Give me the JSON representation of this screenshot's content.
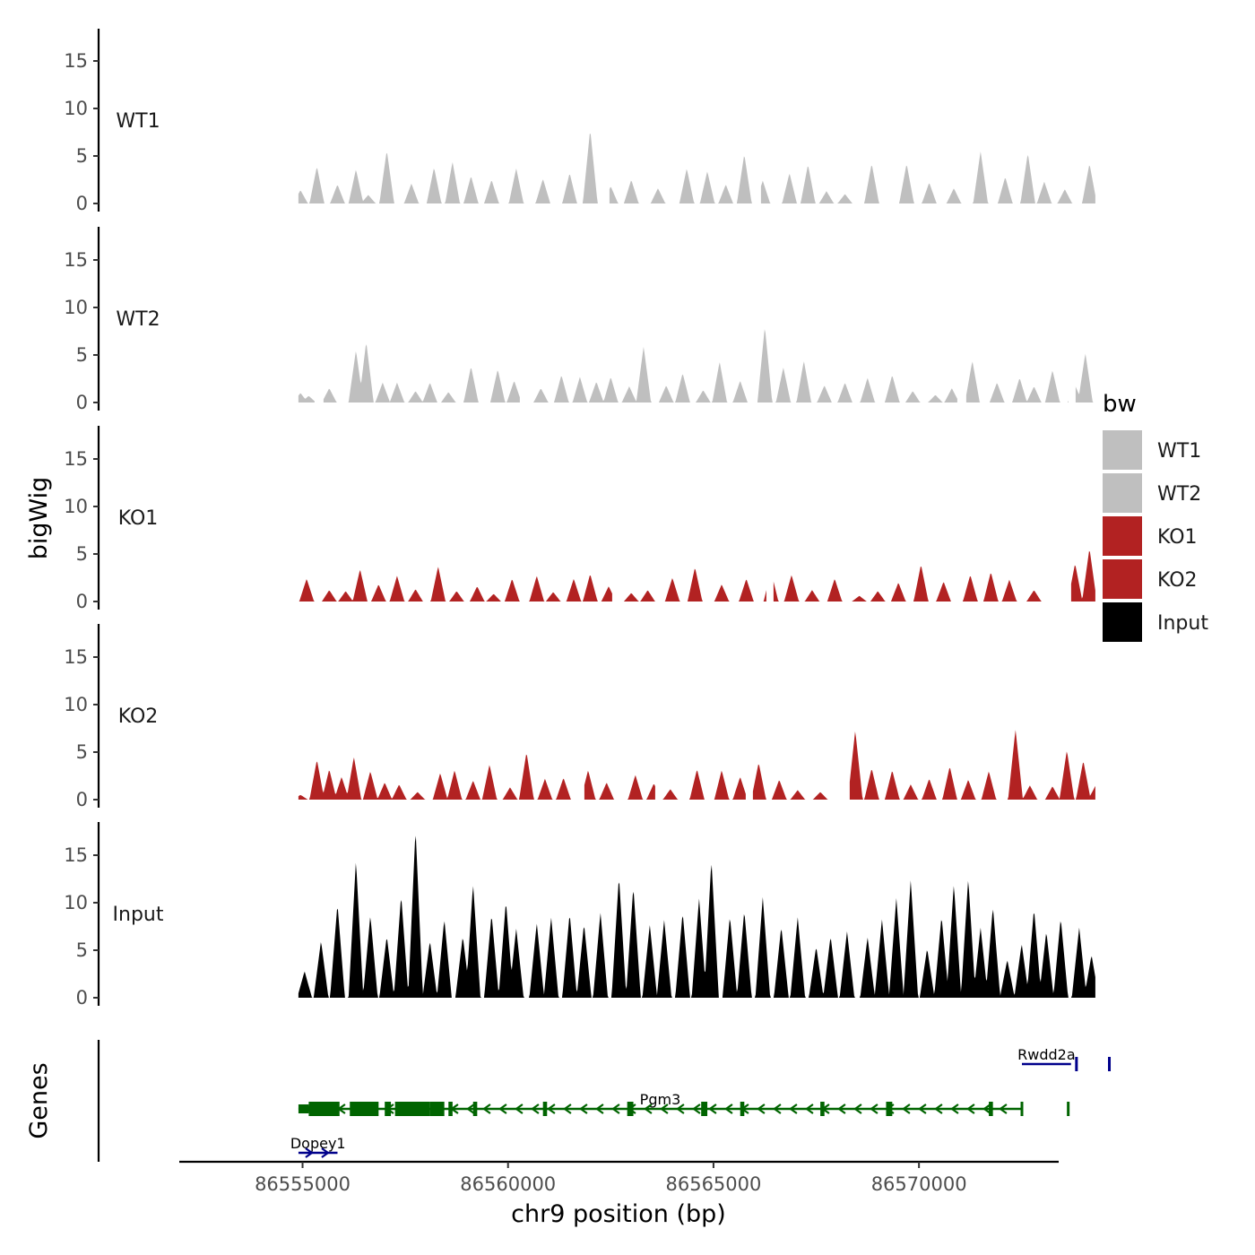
{
  "chart_data": {
    "type": "area",
    "chromosome": "chr9",
    "xlabel": "chr9 position (bp)",
    "ylabel": "bigWig",
    "genes_label": "Genes",
    "xlim": [
      86552000,
      86573400
    ],
    "xticks": [
      86555000,
      86560000,
      86565000,
      86570000
    ],
    "ylim": [
      0,
      18
    ],
    "yticks": [
      0,
      5,
      10,
      15
    ],
    "region": [
      86554900,
      86574300
    ],
    "legend": {
      "title": "bw",
      "position": "right",
      "entries": [
        {
          "label": "WT1",
          "color": "#bfbfbf"
        },
        {
          "label": "WT2",
          "color": "#bfbfbf"
        },
        {
          "label": "KO1",
          "color": "#b22222"
        },
        {
          "label": "KO2",
          "color": "#b22222"
        },
        {
          "label": "Input",
          "color": "#000000"
        }
      ]
    },
    "series": [
      {
        "name": "WT1",
        "color": "#bfbfbf",
        "peaks": [
          [
            86554950,
            1.4
          ],
          [
            86555350,
            3.9
          ],
          [
            86555850,
            2.0
          ],
          [
            86556300,
            3.6
          ],
          [
            86556600,
            0.9
          ],
          [
            86557050,
            5.6
          ],
          [
            86557650,
            2.1
          ],
          [
            86558200,
            3.8
          ],
          [
            86558650,
            4.4
          ],
          [
            86559100,
            2.9
          ],
          [
            86559600,
            2.5
          ],
          [
            86560200,
            3.7
          ],
          [
            86560850,
            2.6
          ],
          [
            86561500,
            3.2
          ],
          [
            86562000,
            7.8
          ],
          [
            86562500,
            1.8
          ],
          [
            86563000,
            2.5
          ],
          [
            86563650,
            1.6
          ],
          [
            86564350,
            3.7
          ],
          [
            86564850,
            3.4
          ],
          [
            86565300,
            2.0
          ],
          [
            86565750,
            5.2
          ],
          [
            86566200,
            2.4
          ],
          [
            86566850,
            3.2
          ],
          [
            86567300,
            4.1
          ],
          [
            86567750,
            1.3
          ],
          [
            86568200,
            1.0
          ],
          [
            86568850,
            4.2
          ],
          [
            86569700,
            4.2
          ],
          [
            86570250,
            2.2
          ],
          [
            86570850,
            1.6
          ],
          [
            86571500,
            5.5
          ],
          [
            86572100,
            2.8
          ],
          [
            86572650,
            5.3
          ],
          [
            86573050,
            2.3
          ],
          [
            86573550,
            1.5
          ],
          [
            86574150,
            4.2
          ]
        ],
        "gaps": [
          [
            86562300,
            86562450
          ],
          [
            86565950,
            86566150
          ]
        ]
      },
      {
        "name": "WT2",
        "color": "#bfbfbf",
        "peaks": [
          [
            86554950,
            1.0
          ],
          [
            86555150,
            0.7
          ],
          [
            86555650,
            1.5
          ],
          [
            86556300,
            5.5
          ],
          [
            86556550,
            6.4
          ],
          [
            86556950,
            2.1
          ],
          [
            86557300,
            2.1
          ],
          [
            86557750,
            1.2
          ],
          [
            86558100,
            2.1
          ],
          [
            86558550,
            1.1
          ],
          [
            86559100,
            3.8
          ],
          [
            86559750,
            3.5
          ],
          [
            86560150,
            2.3
          ],
          [
            86560800,
            1.5
          ],
          [
            86561300,
            2.9
          ],
          [
            86561750,
            2.7
          ],
          [
            86562150,
            2.2
          ],
          [
            86562500,
            2.7
          ],
          [
            86562950,
            1.7
          ],
          [
            86563300,
            5.9
          ],
          [
            86563850,
            1.8
          ],
          [
            86564250,
            3.1
          ],
          [
            86564750,
            1.3
          ],
          [
            86565150,
            4.3
          ],
          [
            86565650,
            2.3
          ],
          [
            86566250,
            8.0
          ],
          [
            86566700,
            3.7
          ],
          [
            86567200,
            4.4
          ],
          [
            86567700,
            1.8
          ],
          [
            86568200,
            2.1
          ],
          [
            86568750,
            2.6
          ],
          [
            86569350,
            2.9
          ],
          [
            86569850,
            1.2
          ],
          [
            86570400,
            0.8
          ],
          [
            86570800,
            1.5
          ],
          [
            86571300,
            4.4
          ],
          [
            86571900,
            2.1
          ],
          [
            86572450,
            2.6
          ],
          [
            86572800,
            1.7
          ],
          [
            86573250,
            3.4
          ],
          [
            86573800,
            1.8
          ],
          [
            86574050,
            5.2
          ]
        ],
        "gaps": [
          [
            86555300,
            86555500
          ],
          [
            86560300,
            86560450
          ],
          [
            86570950,
            86571150
          ],
          [
            86573650,
            86573800
          ]
        ]
      },
      {
        "name": "KO1",
        "color": "#b22222",
        "peaks": [
          [
            86555100,
            2.4
          ],
          [
            86555650,
            1.2
          ],
          [
            86556050,
            1.1
          ],
          [
            86556400,
            3.4
          ],
          [
            86556850,
            1.8
          ],
          [
            86557300,
            2.7
          ],
          [
            86557750,
            1.3
          ],
          [
            86558300,
            3.7
          ],
          [
            86558750,
            1.1
          ],
          [
            86559250,
            1.6
          ],
          [
            86559650,
            0.8
          ],
          [
            86560100,
            2.4
          ],
          [
            86560700,
            2.7
          ],
          [
            86561100,
            1.0
          ],
          [
            86561600,
            2.4
          ],
          [
            86562000,
            2.9
          ],
          [
            86562450,
            1.6
          ],
          [
            86563000,
            0.9
          ],
          [
            86563400,
            1.2
          ],
          [
            86564000,
            2.5
          ],
          [
            86564550,
            3.6
          ],
          [
            86565200,
            1.8
          ],
          [
            86565800,
            2.4
          ],
          [
            86566400,
            3.2
          ],
          [
            86566900,
            2.8
          ],
          [
            86567400,
            1.2
          ],
          [
            86567950,
            2.4
          ],
          [
            86568550,
            0.6
          ],
          [
            86569000,
            1.1
          ],
          [
            86569500,
            2.0
          ],
          [
            86570050,
            3.9
          ],
          [
            86570600,
            2.1
          ],
          [
            86571250,
            2.8
          ],
          [
            86571750,
            3.1
          ],
          [
            86572200,
            2.3
          ],
          [
            86572800,
            1.2
          ],
          [
            86573800,
            4.0
          ],
          [
            86574150,
            5.6
          ]
        ],
        "gaps": [
          [
            86562550,
            86562700
          ],
          [
            86566300,
            86566450
          ],
          [
            86573300,
            86573450
          ],
          [
            86573550,
            86573700
          ]
        ]
      },
      {
        "name": "KO2",
        "color": "#b22222",
        "peaks": [
          [
            86554950,
            0.5
          ],
          [
            86555350,
            4.2
          ],
          [
            86555650,
            3.2
          ],
          [
            86555950,
            2.4
          ],
          [
            86556250,
            4.5
          ],
          [
            86556650,
            3.0
          ],
          [
            86557000,
            1.8
          ],
          [
            86557350,
            1.6
          ],
          [
            86557800,
            0.8
          ],
          [
            86558350,
            2.8
          ],
          [
            86558700,
            3.1
          ],
          [
            86559150,
            2.0
          ],
          [
            86559550,
            3.7
          ],
          [
            86560050,
            1.3
          ],
          [
            86560450,
            5.0
          ],
          [
            86560900,
            2.2
          ],
          [
            86561350,
            2.3
          ],
          [
            86561950,
            3.1
          ],
          [
            86562400,
            1.8
          ],
          [
            86563100,
            2.6
          ],
          [
            86563550,
            1.7
          ],
          [
            86563950,
            1.1
          ],
          [
            86564600,
            3.2
          ],
          [
            86565200,
            3.1
          ],
          [
            86565650,
            2.4
          ],
          [
            86566100,
            3.9
          ],
          [
            86566600,
            2.1
          ],
          [
            86567050,
            1.0
          ],
          [
            86567600,
            0.8
          ],
          [
            86568450,
            7.3
          ],
          [
            86568850,
            3.3
          ],
          [
            86569350,
            3.1
          ],
          [
            86569800,
            1.6
          ],
          [
            86570250,
            2.2
          ],
          [
            86570750,
            3.5
          ],
          [
            86571200,
            2.1
          ],
          [
            86571700,
            3.0
          ],
          [
            86572350,
            7.4
          ],
          [
            86572700,
            1.5
          ],
          [
            86573250,
            1.4
          ],
          [
            86573600,
            5.2
          ],
          [
            86574000,
            4.1
          ],
          [
            86574300,
            1.5
          ]
        ],
        "gaps": [
          [
            86558000,
            86558100
          ],
          [
            86561700,
            86561850
          ],
          [
            86563600,
            86563750
          ],
          [
            86565800,
            86565950
          ],
          [
            86568000,
            86568300
          ]
        ]
      },
      {
        "name": "Input",
        "color": "#000000",
        "peaks": [
          [
            86555050,
            2.8
          ],
          [
            86555450,
            6.0
          ],
          [
            86555850,
            9.9
          ],
          [
            86556300,
            14.5
          ],
          [
            86556650,
            8.7
          ],
          [
            86557050,
            6.5
          ],
          [
            86557400,
            10.8
          ],
          [
            86557750,
            17.8
          ],
          [
            86558100,
            6.0
          ],
          [
            86558450,
            8.3
          ],
          [
            86558900,
            6.5
          ],
          [
            86559150,
            12.0
          ],
          [
            86559600,
            8.8
          ],
          [
            86559950,
            10.2
          ],
          [
            86560200,
            7.3
          ],
          [
            86560700,
            7.9
          ],
          [
            86561050,
            8.5
          ],
          [
            86561500,
            8.9
          ],
          [
            86561850,
            7.8
          ],
          [
            86562250,
            9.0
          ],
          [
            86562700,
            12.8
          ],
          [
            86563050,
            11.7
          ],
          [
            86563450,
            7.7
          ],
          [
            86563800,
            8.2
          ],
          [
            86564250,
            9.0
          ],
          [
            86564650,
            10.5
          ],
          [
            86564950,
            14.5
          ],
          [
            86565400,
            8.6
          ],
          [
            86565750,
            9.2
          ],
          [
            86566200,
            10.6
          ],
          [
            86566650,
            7.5
          ],
          [
            86567050,
            8.5
          ],
          [
            86567500,
            5.4
          ],
          [
            86567850,
            6.5
          ],
          [
            86568250,
            7.0
          ],
          [
            86568750,
            6.4
          ],
          [
            86569100,
            8.3
          ],
          [
            86569450,
            10.5
          ],
          [
            86569800,
            12.4
          ],
          [
            86570200,
            5.2
          ],
          [
            86570550,
            8.6
          ],
          [
            86570850,
            12.0
          ],
          [
            86571200,
            12.6
          ],
          [
            86571500,
            7.4
          ],
          [
            86571800,
            9.6
          ],
          [
            86572150,
            4.0
          ],
          [
            86572500,
            5.7
          ],
          [
            86572800,
            9.4
          ],
          [
            86573100,
            7.0
          ],
          [
            86573450,
            8.4
          ],
          [
            86573900,
            7.4
          ],
          [
            86574200,
            4.5
          ]
        ],
        "gaps": []
      }
    ],
    "genes": [
      {
        "name": "Dopey1",
        "strand": "+",
        "color": "#00008b",
        "row": 3,
        "start": 86554900,
        "end": 86555850,
        "exons": []
      },
      {
        "name": "Pgm3",
        "strand": "-",
        "color": "#006400",
        "row": 2,
        "start": 86554900,
        "end": 86573700,
        "exons": [
          [
            86554900,
            86555150,
            "utr"
          ],
          [
            86555150,
            86555900,
            "cds"
          ],
          [
            86556150,
            86556850,
            "cds"
          ],
          [
            86557000,
            86557150,
            "cds"
          ],
          [
            86557250,
            86558100,
            "cds"
          ],
          [
            86558100,
            86558450,
            "cds"
          ],
          [
            86558550,
            86558650,
            "cds"
          ],
          [
            86559150,
            86559250,
            "cds"
          ],
          [
            86560850,
            86560950,
            "cds"
          ],
          [
            86562900,
            86563050,
            "cds"
          ],
          [
            86564700,
            86564850,
            "cds"
          ],
          [
            86565650,
            86565750,
            "cds"
          ],
          [
            86567600,
            86567700,
            "cds"
          ],
          [
            86569200,
            86569350,
            "cds"
          ],
          [
            86571700,
            86571800,
            "cds"
          ],
          [
            86573600,
            86573700,
            "cds"
          ]
        ]
      },
      {
        "name": "Rwdd2a",
        "strand": "+",
        "color": "#00008b",
        "row": 1,
        "start": 86573700,
        "end": 86576000,
        "exons": [
          [
            86573800,
            86574000,
            "cds"
          ],
          [
            86574600,
            86574800,
            "cds"
          ]
        ]
      }
    ]
  }
}
